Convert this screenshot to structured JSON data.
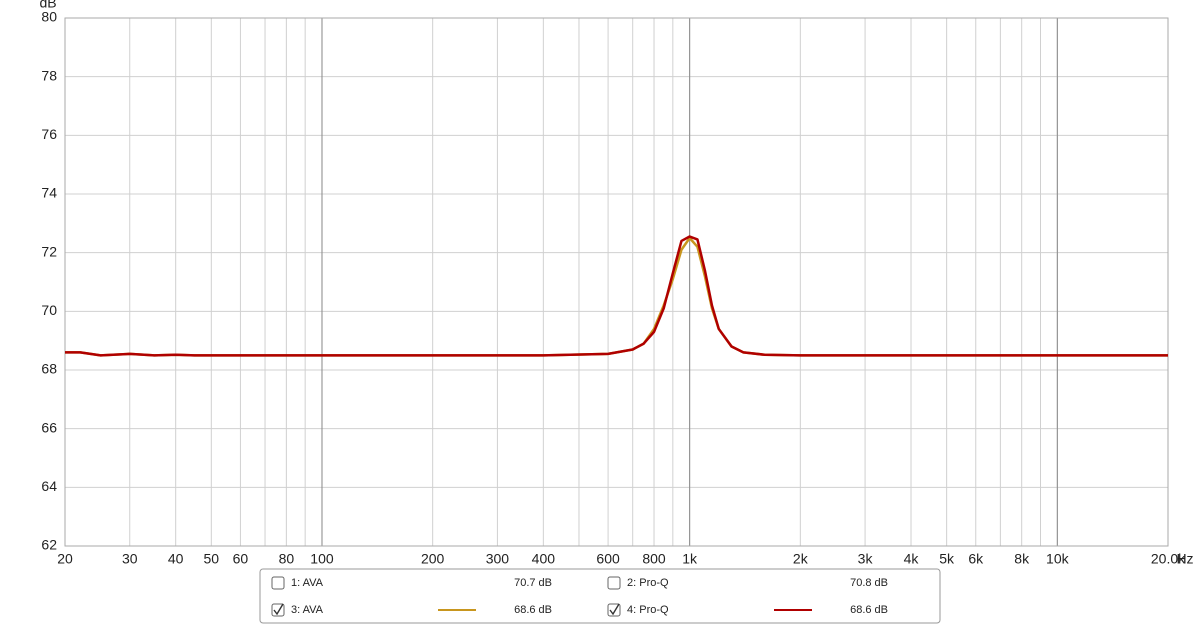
{
  "chart_data": {
    "type": "line",
    "y_label": "dB",
    "x_label": "Hz",
    "xscale": "log",
    "grid": true,
    "xlim": [
      20,
      20000
    ],
    "ylim": [
      62,
      80
    ],
    "yticks": [
      62,
      64,
      66,
      68,
      70,
      72,
      74,
      76,
      78,
      80
    ],
    "xticks": [
      20,
      30,
      40,
      50,
      60,
      80,
      100,
      200,
      300,
      400,
      600,
      800,
      {
        "value": 1000,
        "label": "1k"
      },
      {
        "value": 2000,
        "label": "2k"
      },
      {
        "value": 3000,
        "label": "3k"
      },
      {
        "value": 4000,
        "label": "4k"
      },
      {
        "value": 5000,
        "label": "5k"
      },
      {
        "value": 6000,
        "label": "6k"
      },
      {
        "value": 8000,
        "label": "8k"
      },
      {
        "value": 10000,
        "label": "10k"
      },
      {
        "value": 20000,
        "label": "20.0k"
      }
    ],
    "xminorticks": [
      70,
      90,
      500,
      700,
      900,
      7000,
      9000
    ],
    "xmajorgrid": [
      100,
      1000,
      10000
    ],
    "x": [
      20,
      22,
      25,
      30,
      35,
      40,
      45,
      50,
      60,
      80,
      100,
      200,
      400,
      600,
      700,
      750,
      800,
      850,
      900,
      950,
      1000,
      1050,
      1100,
      1150,
      1200,
      1300,
      1400,
      1600,
      2000,
      5000,
      10000,
      20000
    ],
    "series": [
      {
        "name": "3: AVA",
        "color": "#c8961e",
        "values": [
          68.6,
          68.6,
          68.5,
          68.55,
          68.5,
          68.52,
          68.5,
          68.5,
          68.5,
          68.5,
          68.5,
          68.5,
          68.5,
          68.55,
          68.7,
          68.9,
          69.4,
          70.2,
          71.1,
          72.1,
          72.5,
          72.2,
          71.2,
          70.1,
          69.4,
          68.8,
          68.6,
          68.52,
          68.5,
          68.5,
          68.5,
          68.5
        ]
      },
      {
        "name": "4: Pro-Q",
        "color": "#b00000",
        "values": [
          68.6,
          68.6,
          68.5,
          68.55,
          68.5,
          68.52,
          68.5,
          68.5,
          68.5,
          68.5,
          68.5,
          68.5,
          68.5,
          68.55,
          68.7,
          68.9,
          69.3,
          70.1,
          71.3,
          72.4,
          72.55,
          72.45,
          71.4,
          70.2,
          69.4,
          68.8,
          68.6,
          68.52,
          68.5,
          68.5,
          68.5,
          68.5
        ]
      }
    ],
    "legend": [
      {
        "label": "1: AVA",
        "color": "#a020a0",
        "checked": false,
        "value_label": "70.7 dB"
      },
      {
        "label": "2: Pro-Q",
        "color": "#1a7f8f",
        "checked": false,
        "value_label": "70.8 dB"
      },
      {
        "label": "3: AVA",
        "color": "#c8961e",
        "checked": true,
        "value_label": "68.6 dB"
      },
      {
        "label": "4: Pro-Q",
        "color": "#b00000",
        "checked": true,
        "value_label": "68.6 dB"
      }
    ]
  }
}
